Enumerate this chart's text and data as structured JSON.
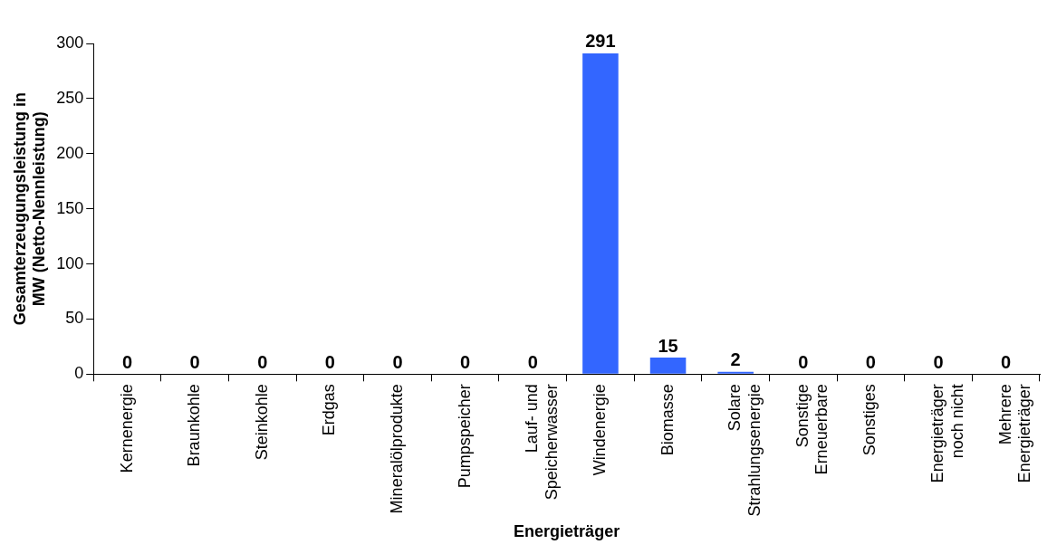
{
  "chart_data": {
    "type": "bar",
    "categories": [
      "Kernenergie",
      "Braunkohle",
      "Steinkohle",
      "Erdgas",
      "Mineralölprodukte",
      "Pumpspeicher",
      "Lauf- und\nSpeicherwasser",
      "Windenergie",
      "Biomasse",
      "Solare\nStrahlungsenergie",
      "Sonstige\nErneuerbare",
      "Sonstiges",
      "Energieträger\nnoch nicht",
      "Mehrere\nEnergieträger"
    ],
    "values": [
      0,
      0,
      0,
      0,
      0,
      0,
      0,
      291,
      15,
      2,
      0,
      0,
      0,
      0
    ],
    "color": "#3366ff",
    "ylim": [
      0,
      300
    ],
    "yticks": [
      0,
      50,
      100,
      150,
      200,
      250,
      300
    ],
    "xlabel": "Energieträger",
    "ylabel": "Gesamterzeugungsleistung in\nMW (Netto-Nennleistung)",
    "data_labels": true,
    "grid": false,
    "legend": false
  }
}
